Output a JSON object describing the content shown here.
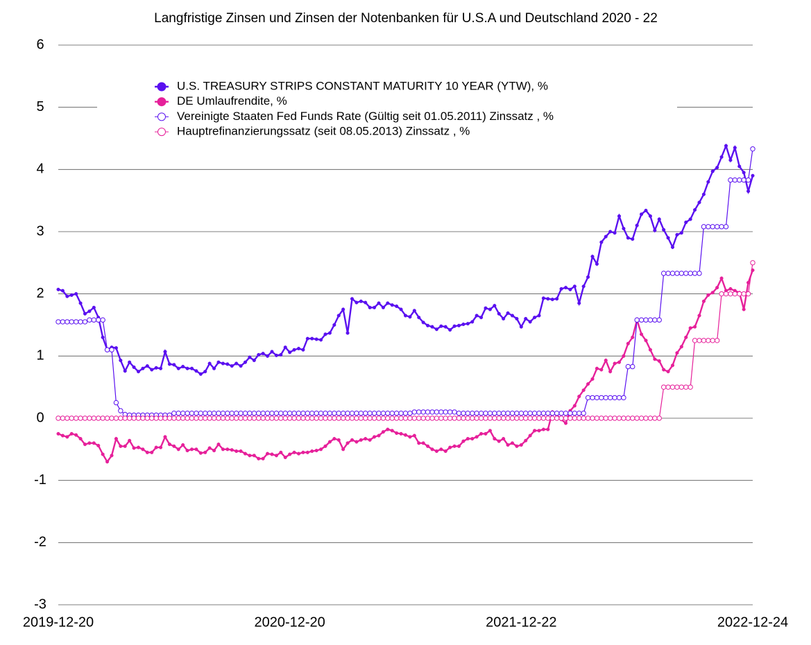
{
  "chart_data": {
    "type": "line",
    "title": "Langfristige Zinsen und Zinsen der Notenbanken für U.S.A und Deutschland   2020 - 22",
    "categories": [
      "2019-12-20",
      null,
      null,
      null,
      null,
      null,
      null,
      null,
      null,
      null,
      null,
      null,
      null,
      null,
      null,
      null,
      null,
      null,
      null,
      null,
      null,
      null,
      null,
      null,
      null,
      null,
      null,
      null,
      null,
      null,
      null,
      null,
      null,
      null,
      null,
      null,
      null,
      null,
      null,
      null,
      null,
      null,
      null,
      null,
      null,
      null,
      null,
      null,
      null,
      null,
      null,
      null,
      "2020-12-20",
      null,
      null,
      null,
      null,
      null,
      null,
      null,
      null,
      null,
      null,
      null,
      null,
      null,
      null,
      null,
      null,
      null,
      null,
      null,
      null,
      null,
      null,
      null,
      null,
      null,
      null,
      null,
      null,
      null,
      null,
      null,
      null,
      null,
      null,
      null,
      null,
      null,
      null,
      null,
      null,
      null,
      null,
      null,
      null,
      null,
      null,
      null,
      null,
      null,
      null,
      null,
      "2021-12-22",
      null,
      null,
      null,
      null,
      null,
      null,
      null,
      null,
      null,
      null,
      null,
      null,
      null,
      null,
      null,
      null,
      null,
      null,
      null,
      null,
      null,
      null,
      null,
      null,
      null,
      null,
      null,
      null,
      null,
      null,
      null,
      null,
      null,
      null,
      null,
      null,
      null,
      null,
      null,
      null,
      null,
      null,
      null,
      null,
      null,
      null,
      null,
      null,
      null,
      null,
      null,
      "2022-12-24"
    ],
    "series": [
      {
        "name": "U.S. TREASURY STRIPS CONSTANT MATURITY 10 YEAR (YTW), %",
        "color": "#5a10f0",
        "marker": "filled",
        "values": [
          2.07,
          2.05,
          1.96,
          1.98,
          2.0,
          1.85,
          1.68,
          1.72,
          1.78,
          1.62,
          1.3,
          1.1,
          1.14,
          1.13,
          0.93,
          0.76,
          0.9,
          0.82,
          0.75,
          0.8,
          0.84,
          0.78,
          0.81,
          0.8,
          1.07,
          0.87,
          0.86,
          0.8,
          0.83,
          0.8,
          0.8,
          0.76,
          0.71,
          0.75,
          0.88,
          0.8,
          0.9,
          0.88,
          0.87,
          0.84,
          0.88,
          0.84,
          0.9,
          0.98,
          0.93,
          1.02,
          1.04,
          1.0,
          1.07,
          1.01,
          1.02,
          1.14,
          1.06,
          1.1,
          1.12,
          1.1,
          1.28,
          1.28,
          1.27,
          1.26,
          1.35,
          1.37,
          1.5,
          1.65,
          1.75,
          1.37,
          1.92,
          1.86,
          1.88,
          1.86,
          1.78,
          1.78,
          1.85,
          1.78,
          1.85,
          1.82,
          1.8,
          1.75,
          1.65,
          1.63,
          1.73,
          1.62,
          1.54,
          1.49,
          1.47,
          1.43,
          1.48,
          1.47,
          1.42,
          1.48,
          1.49,
          1.51,
          1.52,
          1.55,
          1.65,
          1.62,
          1.77,
          1.75,
          1.81,
          1.68,
          1.6,
          1.69,
          1.65,
          1.6,
          1.47,
          1.6,
          1.55,
          1.62,
          1.65,
          1.93,
          1.92,
          1.91,
          1.92,
          2.08,
          2.1,
          2.07,
          2.12,
          1.85,
          2.12,
          2.27,
          2.6,
          2.48,
          2.83,
          2.92,
          3.0,
          2.98,
          3.25,
          3.05,
          2.9,
          2.88,
          3.1,
          3.28,
          3.34,
          3.25,
          3.02,
          3.2,
          3.03,
          2.9,
          2.75,
          2.95,
          2.98,
          3.15,
          3.2,
          3.35,
          3.47,
          3.6,
          3.8,
          3.97,
          4.03,
          4.2,
          4.38,
          4.15,
          4.35,
          4.05,
          3.95,
          3.65,
          3.9
        ]
      },
      {
        "name": "DE Umlaufrendite, %",
        "color": "#e6209a",
        "marker": "filled",
        "values": [
          -0.25,
          -0.28,
          -0.3,
          -0.25,
          -0.27,
          -0.33,
          -0.42,
          -0.4,
          -0.4,
          -0.44,
          -0.58,
          -0.7,
          -0.6,
          -0.33,
          -0.45,
          -0.45,
          -0.36,
          -0.48,
          -0.47,
          -0.5,
          -0.55,
          -0.55,
          -0.47,
          -0.47,
          -0.3,
          -0.42,
          -0.45,
          -0.5,
          -0.43,
          -0.52,
          -0.5,
          -0.5,
          -0.56,
          -0.55,
          -0.48,
          -0.52,
          -0.42,
          -0.5,
          -0.5,
          -0.51,
          -0.53,
          -0.53,
          -0.57,
          -0.6,
          -0.6,
          -0.65,
          -0.65,
          -0.57,
          -0.58,
          -0.6,
          -0.55,
          -0.63,
          -0.58,
          -0.55,
          -0.57,
          -0.55,
          -0.55,
          -0.53,
          -0.52,
          -0.5,
          -0.45,
          -0.38,
          -0.33,
          -0.35,
          -0.5,
          -0.4,
          -0.35,
          -0.38,
          -0.35,
          -0.33,
          -0.35,
          -0.3,
          -0.28,
          -0.22,
          -0.18,
          -0.2,
          -0.24,
          -0.25,
          -0.27,
          -0.3,
          -0.28,
          -0.4,
          -0.4,
          -0.45,
          -0.5,
          -0.53,
          -0.5,
          -0.53,
          -0.47,
          -0.45,
          -0.45,
          -0.37,
          -0.33,
          -0.33,
          -0.3,
          -0.25,
          -0.25,
          -0.2,
          -0.33,
          -0.37,
          -0.33,
          -0.43,
          -0.4,
          -0.45,
          -0.43,
          -0.36,
          -0.28,
          -0.2,
          -0.2,
          -0.18,
          -0.18,
          0.1,
          0.05,
          -0.02,
          -0.08,
          0.12,
          0.2,
          0.35,
          0.45,
          0.55,
          0.63,
          0.8,
          0.78,
          0.93,
          0.75,
          0.88,
          0.9,
          1.0,
          1.2,
          1.3,
          1.58,
          1.35,
          1.25,
          1.1,
          0.95,
          0.92,
          0.78,
          0.75,
          0.85,
          1.05,
          1.15,
          1.3,
          1.45,
          1.47,
          1.65,
          1.88,
          1.98,
          2.02,
          2.1,
          2.25,
          2.05,
          2.08,
          2.05,
          2.02,
          1.75,
          2.18,
          2.38
        ]
      },
      {
        "name": "Vereinigte Staaten Fed Funds Rate (Gültig seit 01.05.2011) Zinssatz , %",
        "color": "#5a10f0",
        "marker": "hollow",
        "values": [
          1.55,
          1.55,
          1.55,
          1.55,
          1.55,
          1.55,
          1.55,
          1.58,
          1.58,
          1.58,
          1.58,
          1.1,
          1.1,
          0.25,
          0.12,
          0.06,
          0.05,
          0.05,
          0.05,
          0.05,
          0.05,
          0.05,
          0.05,
          0.05,
          0.05,
          0.05,
          0.08,
          0.08,
          0.08,
          0.08,
          0.08,
          0.08,
          0.08,
          0.08,
          0.08,
          0.08,
          0.08,
          0.08,
          0.08,
          0.08,
          0.08,
          0.08,
          0.08,
          0.08,
          0.08,
          0.08,
          0.08,
          0.08,
          0.08,
          0.08,
          0.08,
          0.08,
          0.08,
          0.08,
          0.08,
          0.08,
          0.08,
          0.08,
          0.08,
          0.08,
          0.08,
          0.08,
          0.08,
          0.08,
          0.08,
          0.08,
          0.08,
          0.08,
          0.08,
          0.08,
          0.08,
          0.08,
          0.08,
          0.08,
          0.08,
          0.08,
          0.08,
          0.08,
          0.08,
          0.08,
          0.1,
          0.1,
          0.1,
          0.1,
          0.1,
          0.1,
          0.1,
          0.1,
          0.1,
          0.1,
          0.08,
          0.08,
          0.08,
          0.08,
          0.08,
          0.08,
          0.08,
          0.08,
          0.08,
          0.08,
          0.08,
          0.08,
          0.08,
          0.08,
          0.08,
          0.08,
          0.08,
          0.08,
          0.08,
          0.08,
          0.08,
          0.08,
          0.08,
          0.08,
          0.08,
          0.08,
          0.08,
          0.08,
          0.08,
          0.33,
          0.33,
          0.33,
          0.33,
          0.33,
          0.33,
          0.33,
          0.33,
          0.33,
          0.83,
          0.83,
          1.58,
          1.58,
          1.58,
          1.58,
          1.58,
          1.58,
          2.33,
          2.33,
          2.33,
          2.33,
          2.33,
          2.33,
          2.33,
          2.33,
          2.33,
          3.08,
          3.08,
          3.08,
          3.08,
          3.08,
          3.08,
          3.83,
          3.83,
          3.83,
          3.83,
          3.83,
          4.33
        ]
      },
      {
        "name": "Hauptrefinanzierungssatz (seit 08.05.2013) Zinssatz , %",
        "color": "#e6209a",
        "marker": "hollow",
        "values": [
          0,
          0,
          0,
          0,
          0,
          0,
          0,
          0,
          0,
          0,
          0,
          0,
          0,
          0,
          0,
          0,
          0,
          0,
          0,
          0,
          0,
          0,
          0,
          0,
          0,
          0,
          0,
          0,
          0,
          0,
          0,
          0,
          0,
          0,
          0,
          0,
          0,
          0,
          0,
          0,
          0,
          0,
          0,
          0,
          0,
          0,
          0,
          0,
          0,
          0,
          0,
          0,
          0,
          0,
          0,
          0,
          0,
          0,
          0,
          0,
          0,
          0,
          0,
          0,
          0,
          0,
          0,
          0,
          0,
          0,
          0,
          0,
          0,
          0,
          0,
          0,
          0,
          0,
          0,
          0,
          0,
          0,
          0,
          0,
          0,
          0,
          0,
          0,
          0,
          0,
          0,
          0,
          0,
          0,
          0,
          0,
          0,
          0,
          0,
          0,
          0,
          0,
          0,
          0,
          0,
          0,
          0,
          0,
          0,
          0,
          0,
          0,
          0,
          0,
          0,
          0,
          0,
          0,
          0,
          0,
          0,
          0,
          0,
          0,
          0,
          0,
          0,
          0,
          0,
          0,
          0,
          0,
          0,
          0,
          0,
          0,
          0.5,
          0.5,
          0.5,
          0.5,
          0.5,
          0.5,
          0.5,
          1.25,
          1.25,
          1.25,
          1.25,
          1.25,
          1.25,
          2.0,
          2.0,
          2.0,
          2.0,
          2.0,
          2.0,
          2.0,
          2.5
        ]
      }
    ],
    "ylim": [
      -3,
      6
    ],
    "yticks": [
      -3,
      -2,
      -1,
      0,
      1,
      2,
      3,
      4,
      5,
      6
    ],
    "grid": true,
    "legend": "upper center"
  }
}
